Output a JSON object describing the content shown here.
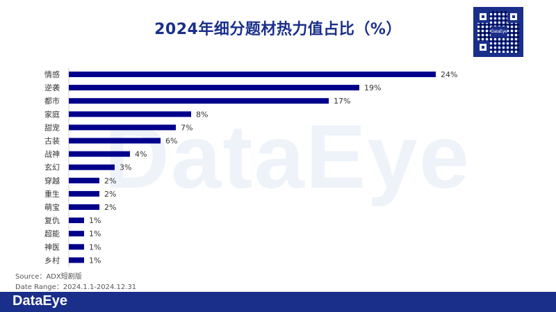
{
  "header": {
    "title": "2024年细分题材热力值占比（%）"
  },
  "watermark": "DataEye",
  "qr": {
    "logo_text": "DataEye"
  },
  "chart_data": {
    "type": "bar",
    "orientation": "horizontal",
    "title": "2024年细分题材热力值占比（%）",
    "categories": [
      "情感",
      "逆袭",
      "都市",
      "家庭",
      "甜宠",
      "古装",
      "战神",
      "玄幻",
      "穿越",
      "重生",
      "萌宝",
      "复仇",
      "超能",
      "神医",
      "乡村"
    ],
    "values": [
      24,
      19,
      17,
      8,
      7,
      6,
      4,
      3,
      2,
      2,
      2,
      1,
      1,
      1,
      1
    ],
    "value_labels": [
      "24%",
      "19%",
      "17%",
      "8%",
      "7%",
      "6%",
      "4%",
      "3%",
      "2%",
      "2%",
      "2%",
      "1%",
      "1%",
      "1%",
      "1%"
    ],
    "bar_color": "#00008b",
    "grid": false,
    "legend": "none"
  },
  "footnotes": {
    "source": "Source：ADX短剧版",
    "date_range": "Date Range：2024.1.1-2024.12.31"
  },
  "footer": {
    "brand": "DataEye",
    "color": "#1a2f8a"
  }
}
